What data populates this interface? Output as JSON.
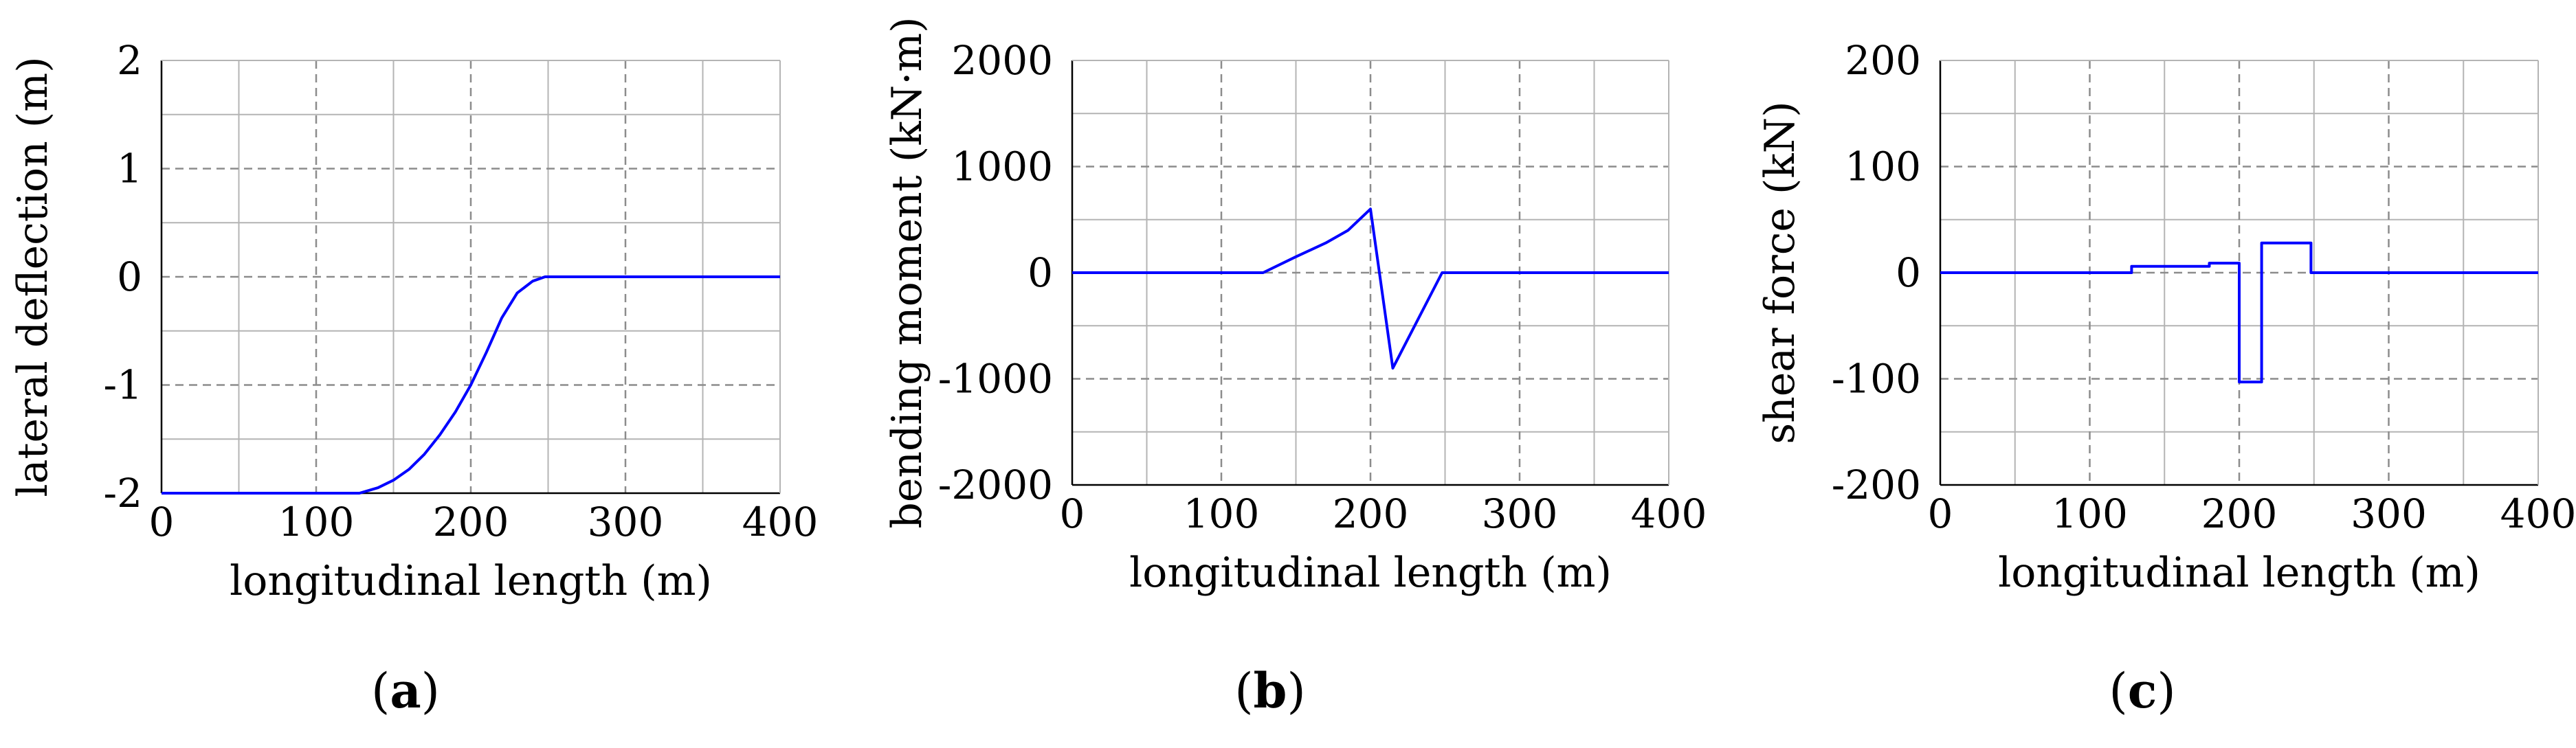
{
  "chart_data": [
    {
      "type": "line",
      "panel": {
        "open": "(",
        "letter": "a",
        "close": ")"
      },
      "xlabel": "longitudinal length (m)",
      "ylabel": "lateral deflection (m)",
      "xlim": [
        0,
        400
      ],
      "ylim": [
        -2,
        2
      ],
      "xticks": [
        0,
        100,
        200,
        300,
        400
      ],
      "yticks": [
        -2,
        -1,
        0,
        1,
        2
      ],
      "xtick_labels": [
        "0",
        "100",
        "200",
        "300",
        "400"
      ],
      "ytick_labels": [
        "-2",
        "-1",
        "0",
        "1",
        "2"
      ],
      "x_minor": [
        50,
        150,
        250,
        350
      ],
      "y_minor": [
        -1.5,
        -0.5,
        0.5,
        1.5
      ],
      "grid": true,
      "series": [
        {
          "color": "#0000ff",
          "x": [
            0,
            128,
            140,
            150,
            160,
            170,
            180,
            190,
            200,
            210,
            220,
            230,
            240,
            248,
            400
          ],
          "y": [
            -2,
            -2,
            -1.95,
            -1.88,
            -1.78,
            -1.64,
            -1.46,
            -1.25,
            -1.0,
            -0.7,
            -0.38,
            -0.15,
            -0.04,
            0,
            0
          ]
        }
      ]
    },
    {
      "type": "line",
      "panel": {
        "open": "(",
        "letter": "b",
        "close": ")"
      },
      "xlabel": "longitudinal length (m)",
      "ylabel": "bending moment (kN·m)",
      "xlim": [
        0,
        400
      ],
      "ylim": [
        -2000,
        2000
      ],
      "xticks": [
        0,
        100,
        200,
        300,
        400
      ],
      "yticks": [
        -2000,
        -1000,
        0,
        1000,
        2000
      ],
      "xtick_labels": [
        "0",
        "100",
        "200",
        "300",
        "400"
      ],
      "ytick_labels": [
        "-2000",
        "-1000",
        "0",
        "1000",
        "2000"
      ],
      "x_minor": [
        50,
        150,
        250,
        350
      ],
      "y_minor": [
        -1500,
        -500,
        500,
        1500
      ],
      "grid": true,
      "series": [
        {
          "color": "#0000ff",
          "x": [
            0,
            128,
            150,
            170,
            185,
            200,
            215,
            248,
            400
          ],
          "y": [
            0,
            0,
            150,
            280,
            400,
            600,
            -900,
            0,
            0
          ]
        }
      ]
    },
    {
      "type": "line",
      "panel": {
        "open": "(",
        "letter": "c",
        "close": ")"
      },
      "xlabel": "longitudinal length (m)",
      "ylabel": "shear force (kN)",
      "xlim": [
        0,
        400
      ],
      "ylim": [
        -200,
        200
      ],
      "xticks": [
        0,
        100,
        200,
        300,
        400
      ],
      "yticks": [
        -200,
        -100,
        0,
        100,
        200
      ],
      "xtick_labels": [
        "0",
        "100",
        "200",
        "300",
        "400"
      ],
      "ytick_labels": [
        "-200",
        "-100",
        "0",
        "100",
        "200"
      ],
      "x_minor": [
        50,
        150,
        250,
        350
      ],
      "y_minor": [
        -150,
        -50,
        50,
        150
      ],
      "grid": true,
      "series": [
        {
          "color": "#0000ff",
          "x": [
            0,
            128,
            128,
            180,
            180,
            200,
            200,
            215,
            215,
            248,
            248,
            400
          ],
          "y": [
            0,
            0,
            6,
            6,
            9,
            9,
            -103,
            -103,
            28,
            28,
            0,
            0
          ]
        }
      ]
    }
  ]
}
